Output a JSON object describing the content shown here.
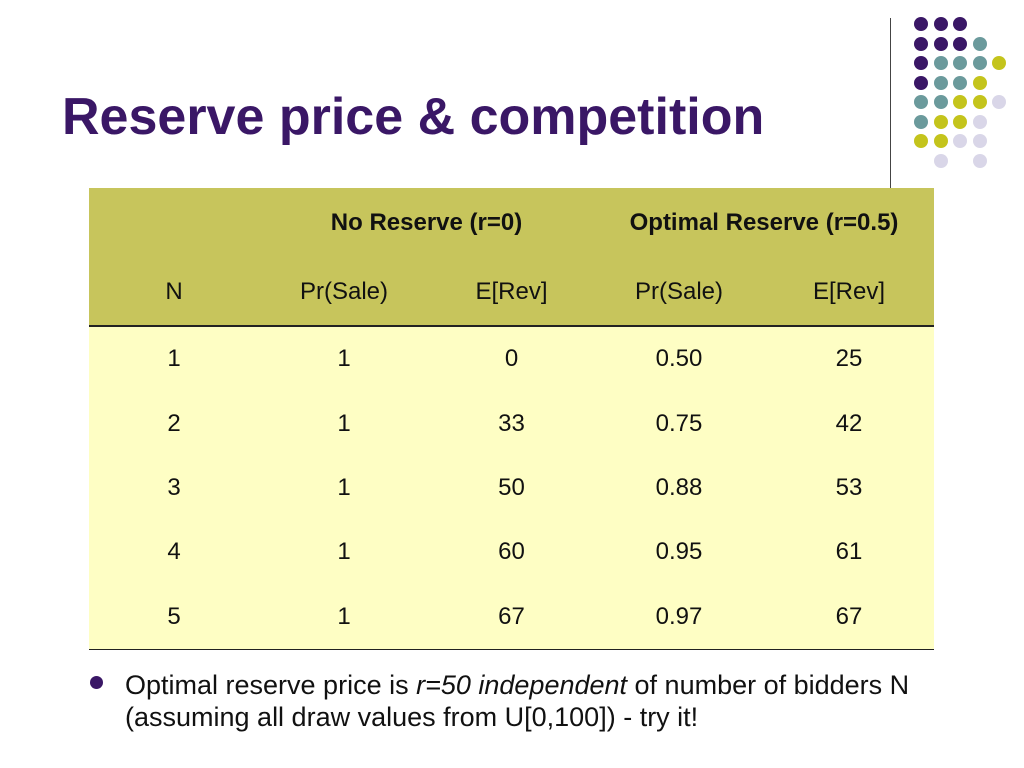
{
  "slide": {
    "title": "Reserve price & competition"
  },
  "table": {
    "group_headers": [
      "",
      "No Reserve (r=0)",
      "Optimal Reserve (r=0.5)"
    ],
    "columns": [
      "N",
      "Pr(Sale)",
      "E[Rev]",
      "Pr(Sale)",
      "E[Rev]"
    ],
    "rows": [
      [
        "1",
        "1",
        "0",
        "0.50",
        "25"
      ],
      [
        "2",
        "1",
        "33",
        "0.75",
        "42"
      ],
      [
        "3",
        "1",
        "50",
        "0.88",
        "53"
      ],
      [
        "4",
        "1",
        "60",
        "0.95",
        "61"
      ],
      [
        "5",
        "1",
        "67",
        "0.97",
        "67"
      ]
    ]
  },
  "bullet": {
    "text_before": "Optimal reserve price is ",
    "italic": "r=50 independent",
    "text_after": " of number of bidders N (assuming all draw values from U[0,100]) - try it!"
  },
  "colors": {
    "title": "#3a1766",
    "header_bg": "#c7c55c",
    "body_bg": "#fefec4",
    "dot_purple": "#3a1766",
    "dot_teal": "#6b9a9c",
    "dot_olive": "#c4c41c",
    "dot_lavender": "#d9d6e8"
  },
  "decoration": {
    "dot_grid_colors": [
      [
        "purple",
        "purple",
        "purple",
        "none",
        "none"
      ],
      [
        "purple",
        "purple",
        "purple",
        "teal",
        "none"
      ],
      [
        "purple",
        "teal",
        "teal",
        "teal",
        "olive"
      ],
      [
        "purple",
        "teal",
        "teal",
        "olive",
        "none"
      ],
      [
        "teal",
        "teal",
        "olive",
        "olive",
        "lavender"
      ],
      [
        "teal",
        "olive",
        "olive",
        "lavender",
        "none"
      ],
      [
        "olive",
        "olive",
        "lavender",
        "lavender",
        "none"
      ],
      [
        "none",
        "lavender",
        "none",
        "lavender",
        "none"
      ]
    ]
  }
}
